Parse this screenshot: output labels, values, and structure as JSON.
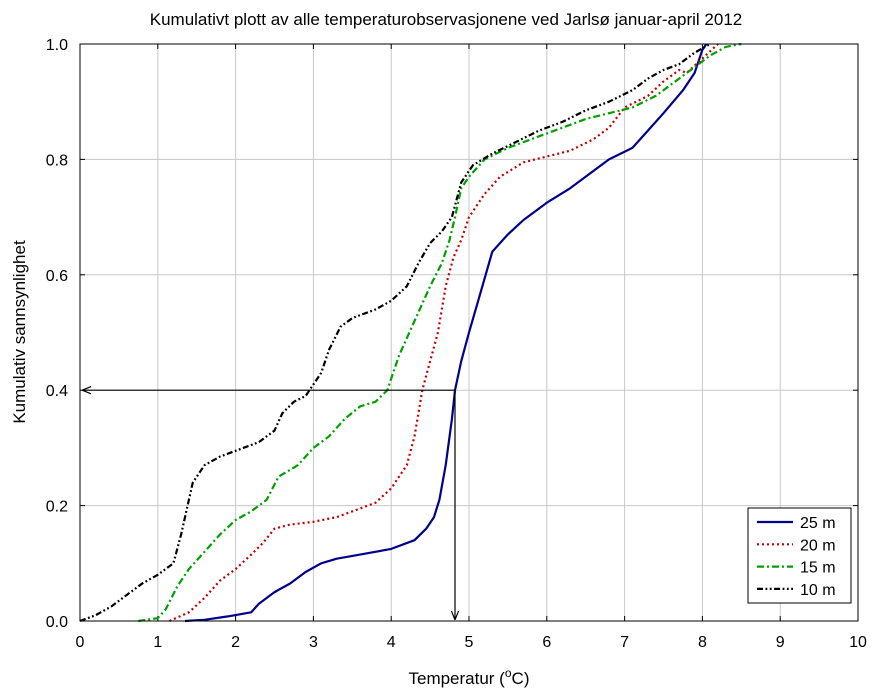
{
  "chart_data": {
    "type": "line",
    "title": "Kumulativt plott av alle temperaturobservasjonene ved Jarlsø januar-april 2012",
    "xlabel_main": "Temperatur (",
    "xlabel_sup": "o",
    "xlabel_unit": "C)",
    "ylabel": "Kumulativ sannsynlighet",
    "xlim": [
      0,
      10
    ],
    "ylim": [
      0,
      1
    ],
    "x_ticks": [
      "0",
      "1",
      "2",
      "3",
      "4",
      "5",
      "6",
      "7",
      "8",
      "9",
      "10"
    ],
    "y_ticks": [
      "0.0",
      "0.2",
      "0.4",
      "0.6",
      "0.8",
      "1.0"
    ],
    "grid": true,
    "legend_position": "bottom-right",
    "annotation": {
      "x": 4.82,
      "y": 0.4
    },
    "series": [
      {
        "name": "25 m",
        "color": "#00008b",
        "style": "solid",
        "points": [
          [
            1.35,
            0
          ],
          [
            1.6,
            0.002
          ],
          [
            1.9,
            0.008
          ],
          [
            2.2,
            0.015
          ],
          [
            2.3,
            0.03
          ],
          [
            2.5,
            0.05
          ],
          [
            2.7,
            0.065
          ],
          [
            2.9,
            0.085
          ],
          [
            3.1,
            0.1
          ],
          [
            3.3,
            0.108
          ],
          [
            3.6,
            0.115
          ],
          [
            4.0,
            0.125
          ],
          [
            4.3,
            0.14
          ],
          [
            4.45,
            0.16
          ],
          [
            4.55,
            0.18
          ],
          [
            4.62,
            0.21
          ],
          [
            4.7,
            0.27
          ],
          [
            4.78,
            0.35
          ],
          [
            4.82,
            0.4
          ],
          [
            4.9,
            0.45
          ],
          [
            5.0,
            0.5
          ],
          [
            5.15,
            0.57
          ],
          [
            5.3,
            0.64
          ],
          [
            5.5,
            0.67
          ],
          [
            5.7,
            0.695
          ],
          [
            6.0,
            0.725
          ],
          [
            6.3,
            0.75
          ],
          [
            6.6,
            0.78
          ],
          [
            6.8,
            0.8
          ],
          [
            7.1,
            0.82
          ],
          [
            7.3,
            0.85
          ],
          [
            7.5,
            0.88
          ],
          [
            7.75,
            0.92
          ],
          [
            7.9,
            0.95
          ],
          [
            8.0,
            0.99
          ],
          [
            8.05,
            1.0
          ]
        ]
      },
      {
        "name": "20 m",
        "color": "#c00000",
        "style": "dotted",
        "points": [
          [
            1.15,
            0
          ],
          [
            1.4,
            0.015
          ],
          [
            1.6,
            0.04
          ],
          [
            1.8,
            0.07
          ],
          [
            2.0,
            0.09
          ],
          [
            2.2,
            0.115
          ],
          [
            2.35,
            0.135
          ],
          [
            2.5,
            0.16
          ],
          [
            2.7,
            0.167
          ],
          [
            3.0,
            0.172
          ],
          [
            3.3,
            0.18
          ],
          [
            3.6,
            0.195
          ],
          [
            3.8,
            0.205
          ],
          [
            4.0,
            0.23
          ],
          [
            4.2,
            0.27
          ],
          [
            4.3,
            0.32
          ],
          [
            4.4,
            0.4
          ],
          [
            4.5,
            0.45
          ],
          [
            4.6,
            0.5
          ],
          [
            4.7,
            0.58
          ],
          [
            4.8,
            0.63
          ],
          [
            4.9,
            0.66
          ],
          [
            5.0,
            0.7
          ],
          [
            5.2,
            0.74
          ],
          [
            5.4,
            0.77
          ],
          [
            5.7,
            0.795
          ],
          [
            6.0,
            0.805
          ],
          [
            6.3,
            0.815
          ],
          [
            6.6,
            0.835
          ],
          [
            6.8,
            0.855
          ],
          [
            7.0,
            0.89
          ],
          [
            7.3,
            0.91
          ],
          [
            7.5,
            0.935
          ],
          [
            7.7,
            0.955
          ],
          [
            7.8,
            0.95
          ],
          [
            8.0,
            0.975
          ],
          [
            8.2,
            1.0
          ]
        ]
      },
      {
        "name": "15 m",
        "color": "#00a000",
        "style": "dashdot",
        "points": [
          [
            0.75,
            0
          ],
          [
            1.0,
            0.005
          ],
          [
            1.1,
            0.02
          ],
          [
            1.25,
            0.06
          ],
          [
            1.4,
            0.09
          ],
          [
            1.6,
            0.12
          ],
          [
            1.8,
            0.15
          ],
          [
            2.0,
            0.175
          ],
          [
            2.2,
            0.19
          ],
          [
            2.4,
            0.21
          ],
          [
            2.55,
            0.25
          ],
          [
            2.8,
            0.27
          ],
          [
            3.0,
            0.3
          ],
          [
            3.2,
            0.32
          ],
          [
            3.4,
            0.35
          ],
          [
            3.6,
            0.372
          ],
          [
            3.8,
            0.38
          ],
          [
            3.95,
            0.4
          ],
          [
            4.1,
            0.46
          ],
          [
            4.3,
            0.52
          ],
          [
            4.5,
            0.58
          ],
          [
            4.65,
            0.62
          ],
          [
            4.75,
            0.66
          ],
          [
            4.82,
            0.7
          ],
          [
            4.9,
            0.75
          ],
          [
            5.0,
            0.77
          ],
          [
            5.2,
            0.8
          ],
          [
            5.5,
            0.82
          ],
          [
            5.8,
            0.835
          ],
          [
            6.2,
            0.855
          ],
          [
            6.5,
            0.87
          ],
          [
            6.8,
            0.88
          ],
          [
            7.1,
            0.89
          ],
          [
            7.4,
            0.91
          ],
          [
            7.7,
            0.94
          ],
          [
            7.9,
            0.96
          ],
          [
            8.1,
            0.98
          ],
          [
            8.3,
            0.995
          ],
          [
            8.5,
            1.0
          ]
        ]
      },
      {
        "name": "10 m",
        "color": "#000000",
        "style": "dashdotdot",
        "points": [
          [
            0,
            0
          ],
          [
            0.2,
            0.01
          ],
          [
            0.4,
            0.025
          ],
          [
            0.6,
            0.045
          ],
          [
            0.8,
            0.065
          ],
          [
            1.0,
            0.08
          ],
          [
            1.2,
            0.1
          ],
          [
            1.3,
            0.15
          ],
          [
            1.45,
            0.24
          ],
          [
            1.6,
            0.27
          ],
          [
            1.8,
            0.285
          ],
          [
            2.0,
            0.295
          ],
          [
            2.3,
            0.31
          ],
          [
            2.5,
            0.33
          ],
          [
            2.6,
            0.36
          ],
          [
            2.75,
            0.38
          ],
          [
            2.9,
            0.39
          ],
          [
            3.1,
            0.43
          ],
          [
            3.2,
            0.47
          ],
          [
            3.35,
            0.51
          ],
          [
            3.5,
            0.525
          ],
          [
            3.8,
            0.54
          ],
          [
            4.0,
            0.555
          ],
          [
            4.2,
            0.58
          ],
          [
            4.35,
            0.62
          ],
          [
            4.5,
            0.655
          ],
          [
            4.65,
            0.675
          ],
          [
            4.78,
            0.7
          ],
          [
            4.9,
            0.76
          ],
          [
            5.05,
            0.79
          ],
          [
            5.3,
            0.81
          ],
          [
            5.6,
            0.83
          ],
          [
            5.9,
            0.85
          ],
          [
            6.2,
            0.865
          ],
          [
            6.5,
            0.885
          ],
          [
            6.8,
            0.9
          ],
          [
            7.1,
            0.92
          ],
          [
            7.3,
            0.94
          ],
          [
            7.5,
            0.955
          ],
          [
            7.7,
            0.965
          ],
          [
            7.9,
            0.985
          ],
          [
            8.1,
            1.0
          ]
        ]
      }
    ]
  }
}
